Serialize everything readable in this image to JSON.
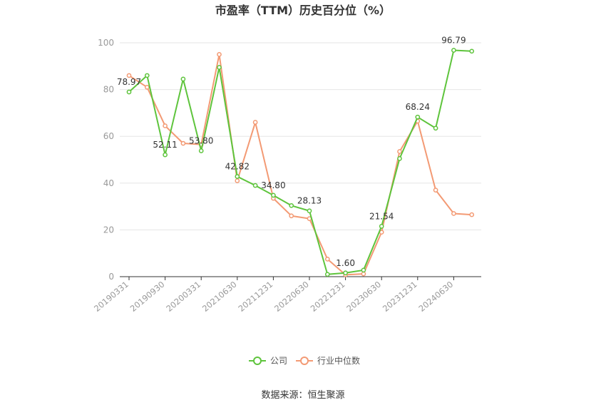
{
  "chart_data": {
    "type": "line",
    "title": "市盈率（TTM）历史百分位（%）",
    "xlabel": "",
    "ylabel": "",
    "ylim": [
      0,
      100
    ],
    "yticks": [
      0,
      20,
      40,
      60,
      80,
      100
    ],
    "grid": true,
    "legend_position": "bottom",
    "x_tick_labels": [
      "20190331",
      "20190930",
      "20200331",
      "20210630",
      "20211231",
      "20220630",
      "20221231",
      "20230630",
      "20231231",
      "20240630"
    ],
    "x_tick_indices": [
      0,
      2,
      4,
      6,
      8,
      10,
      12,
      14,
      16,
      18
    ],
    "series": [
      {
        "name": "公司",
        "color": "#5ec43c",
        "values": [
          78.97,
          86.0,
          52.11,
          84.5,
          53.8,
          89.5,
          42.82,
          39.0,
          34.8,
          30.4,
          28.13,
          1.0,
          1.6,
          2.8,
          21.54,
          50.5,
          68.24,
          63.5,
          96.79,
          96.4
        ],
        "labels": [
          {
            "index": 0,
            "text": "78.97"
          },
          {
            "index": 2,
            "text": "52.11"
          },
          {
            "index": 4,
            "text": "53.80"
          },
          {
            "index": 6,
            "text": "42.82"
          },
          {
            "index": 8,
            "text": "34.80"
          },
          {
            "index": 10,
            "text": "28.13"
          },
          {
            "index": 12,
            "text": "1.60"
          },
          {
            "index": 14,
            "text": "21.54"
          },
          {
            "index": 16,
            "text": "68.24"
          },
          {
            "index": 18,
            "text": "96.79"
          }
        ]
      },
      {
        "name": "行业中位数",
        "color": "#f39a74",
        "values": [
          86.0,
          81.0,
          64.5,
          57.0,
          56.5,
          95.0,
          41.0,
          66.0,
          33.5,
          26.0,
          24.8,
          7.5,
          0.8,
          1.2,
          19.0,
          53.5,
          66.5,
          37.0,
          27.0,
          26.5
        ]
      }
    ]
  },
  "footer": {
    "source": "数据来源：恒生聚源"
  }
}
